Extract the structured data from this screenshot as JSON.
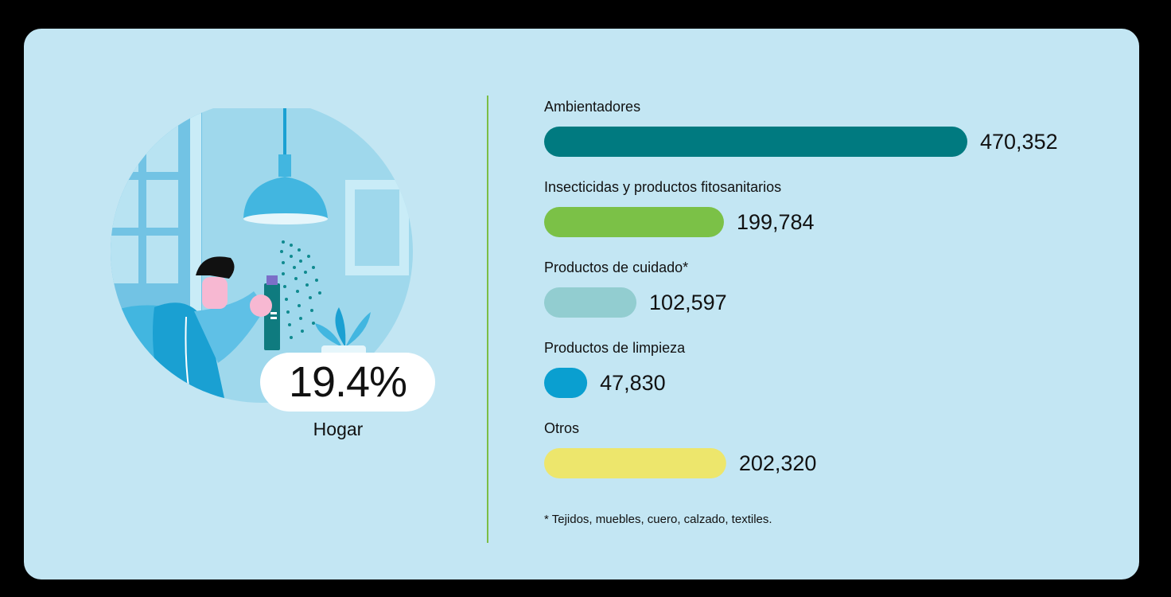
{
  "highlight": {
    "percent": "19.4%",
    "label": "Hogar"
  },
  "footnote": "* Tejidos, muebles, cuero, calzado, textiles.",
  "colors": {
    "background": "#c3e6f3",
    "divider": "#7cbd45",
    "illustration_circle": "#9fd8ec"
  },
  "chart_data": {
    "type": "bar",
    "orientation": "horizontal",
    "categories": [
      "Ambientadores",
      "Insecticidas y productos fitosanitarios",
      "Productos de cuidado*",
      "Productos de limpieza",
      "Otros"
    ],
    "values": [
      470352,
      199784,
      102597,
      47830,
      202320
    ],
    "value_labels": [
      "470,352",
      "199,784",
      "102,597",
      "47,830",
      "202,320"
    ],
    "colors": [
      "#007a80",
      "#7bc147",
      "#92cdd0",
      "#0a9fd0",
      "#ede66c"
    ],
    "title": "",
    "xlabel": "",
    "ylabel": "",
    "grid": false,
    "legend": "none"
  }
}
